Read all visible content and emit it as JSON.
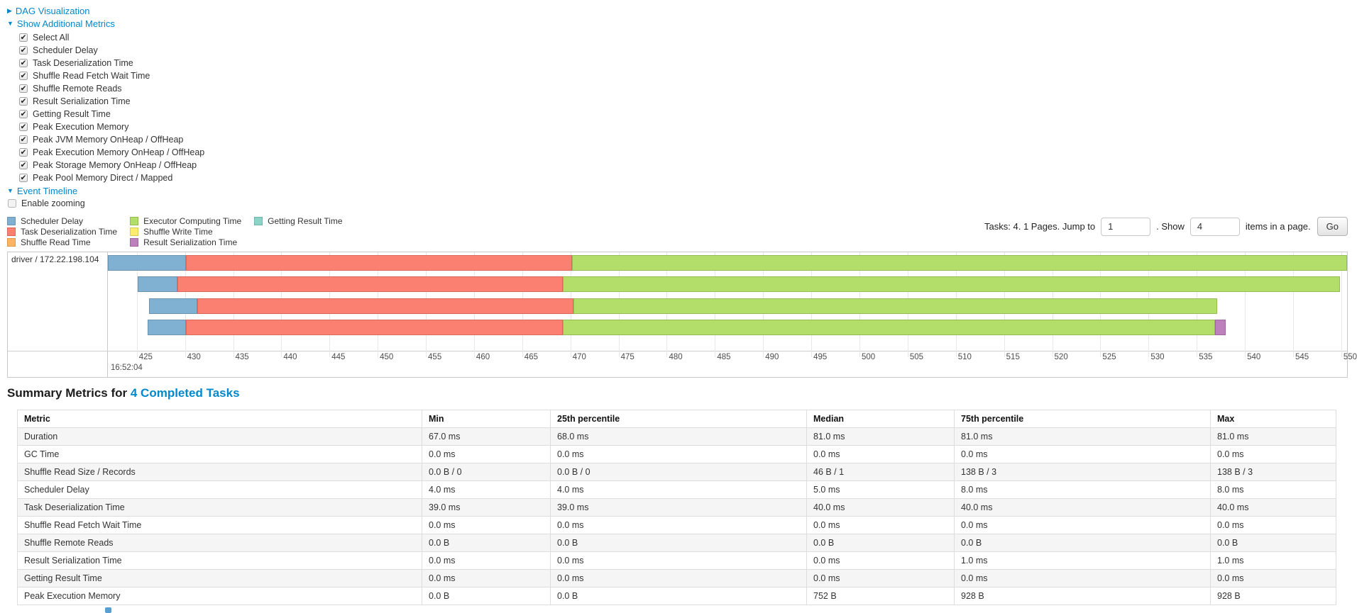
{
  "colors": {
    "link": "#0088cc",
    "segment_colors": {
      "scheduler_delay": {
        "fill": "#80B1D3",
        "border": "#6B94B0"
      },
      "task_deserialization": {
        "fill": "#FB8072",
        "border": "#D9685C"
      },
      "shuffle_read": {
        "fill": "#FDB462",
        "border": "#DB984E"
      },
      "executor_computing": {
        "fill": "#B3DE69",
        "border": "#94BD51"
      },
      "shuffle_write": {
        "fill": "#FFED6F",
        "border": "#DBC95A"
      },
      "result_serialization": {
        "fill": "#BC80BD",
        "border": "#9E659F"
      },
      "getting_result": {
        "fill": "#8DD3C7",
        "border": "#6FB5A9"
      }
    }
  },
  "controls": {
    "dag_label": "DAG Visualization",
    "metrics_label": "Show Additional Metrics",
    "checkboxes": [
      {
        "label": "Select All",
        "checked": true
      },
      {
        "label": "Scheduler Delay",
        "checked": true
      },
      {
        "label": "Task Deserialization Time",
        "checked": true
      },
      {
        "label": "Shuffle Read Fetch Wait Time",
        "checked": true
      },
      {
        "label": "Shuffle Remote Reads",
        "checked": true
      },
      {
        "label": "Result Serialization Time",
        "checked": true
      },
      {
        "label": "Getting Result Time",
        "checked": true
      },
      {
        "label": "Peak Execution Memory",
        "checked": true
      },
      {
        "label": "Peak JVM Memory OnHeap / OffHeap",
        "checked": true
      },
      {
        "label": "Peak Execution Memory OnHeap / OffHeap",
        "checked": true
      },
      {
        "label": "Peak Storage Memory OnHeap / OffHeap",
        "checked": true
      },
      {
        "label": "Peak Pool Memory Direct / Mapped",
        "checked": true
      }
    ],
    "event_timeline_label": "Event Timeline",
    "enable_zooming_label": "Enable zooming"
  },
  "legend": {
    "columns": [
      [
        {
          "key": "scheduler_delay",
          "label": "Scheduler Delay"
        },
        {
          "key": "task_deserialization",
          "label": "Task Deserialization Time"
        },
        {
          "key": "shuffle_read",
          "label": "Shuffle Read Time"
        }
      ],
      [
        {
          "key": "executor_computing",
          "label": "Executor Computing Time"
        },
        {
          "key": "shuffle_write",
          "label": "Shuffle Write Time"
        },
        {
          "key": "result_serialization",
          "label": "Result Serialization Time"
        }
      ],
      [
        {
          "key": "getting_result",
          "label": "Getting Result Time"
        }
      ]
    ]
  },
  "pagination": {
    "prefix": "Tasks: 4. 1 Pages. Jump to",
    "jump_value": "1",
    "mid": ". Show",
    "page_size_value": "4",
    "suffix": "items in a page.",
    "go_label": "Go"
  },
  "timeline": {
    "row_label": "driver / 172.22.198.104",
    "axis": {
      "min": 422.0,
      "max": 550.6,
      "tick_values": [
        425,
        430,
        435,
        440,
        445,
        450,
        455,
        460,
        465,
        470,
        475,
        480,
        485,
        490,
        495,
        500,
        505,
        510,
        515,
        520,
        525,
        530,
        535,
        540,
        545,
        550
      ],
      "major_label": "16:52:04"
    },
    "bars": [
      {
        "start": 422.0,
        "segments": [
          [
            "scheduler_delay",
            430.1
          ],
          [
            "task_deserialization",
            470.2
          ],
          [
            "executor_computing",
            551.0
          ]
        ]
      },
      {
        "start": 425.1,
        "segments": [
          [
            "scheduler_delay",
            429.2
          ],
          [
            "task_deserialization",
            469.2
          ],
          [
            "executor_computing",
            549.9
          ]
        ]
      },
      {
        "start": 426.3,
        "segments": [
          [
            "scheduler_delay",
            431.3
          ],
          [
            "task_deserialization",
            470.3
          ],
          [
            "executor_computing",
            537.1
          ]
        ]
      },
      {
        "start": 426.1,
        "segments": [
          [
            "scheduler_delay",
            430.1
          ],
          [
            "task_deserialization",
            469.2
          ],
          [
            "executor_computing",
            536.9
          ],
          [
            "result_serialization",
            538.0
          ]
        ]
      }
    ]
  },
  "summary": {
    "title_prefix": "Summary Metrics for",
    "title_link": "4 Completed Tasks",
    "columns": [
      "Metric",
      "Min",
      "25th percentile",
      "Median",
      "75th percentile",
      "Max"
    ],
    "rows": [
      [
        "Duration",
        "67.0 ms",
        "68.0 ms",
        "81.0 ms",
        "81.0 ms",
        "81.0 ms"
      ],
      [
        "GC Time",
        "0.0 ms",
        "0.0 ms",
        "0.0 ms",
        "0.0 ms",
        "0.0 ms"
      ],
      [
        "Shuffle Read Size / Records",
        "0.0 B / 0",
        "0.0 B / 0",
        "46 B / 1",
        "138 B / 3",
        "138 B / 3"
      ],
      [
        "Scheduler Delay",
        "4.0 ms",
        "4.0 ms",
        "5.0 ms",
        "8.0 ms",
        "8.0 ms"
      ],
      [
        "Task Deserialization Time",
        "39.0 ms",
        "39.0 ms",
        "40.0 ms",
        "40.0 ms",
        "40.0 ms"
      ],
      [
        "Shuffle Read Fetch Wait Time",
        "0.0 ms",
        "0.0 ms",
        "0.0 ms",
        "0.0 ms",
        "0.0 ms"
      ],
      [
        "Shuffle Remote Reads",
        "0.0 B",
        "0.0 B",
        "0.0 B",
        "0.0 B",
        "0.0 B"
      ],
      [
        "Result Serialization Time",
        "0.0 ms",
        "0.0 ms",
        "0.0 ms",
        "1.0 ms",
        "1.0 ms"
      ],
      [
        "Getting Result Time",
        "0.0 ms",
        "0.0 ms",
        "0.0 ms",
        "0.0 ms",
        "0.0 ms"
      ],
      [
        "Peak Execution Memory",
        "0.0 B",
        "0.0 B",
        "752 B",
        "928 B",
        "928 B"
      ]
    ]
  }
}
